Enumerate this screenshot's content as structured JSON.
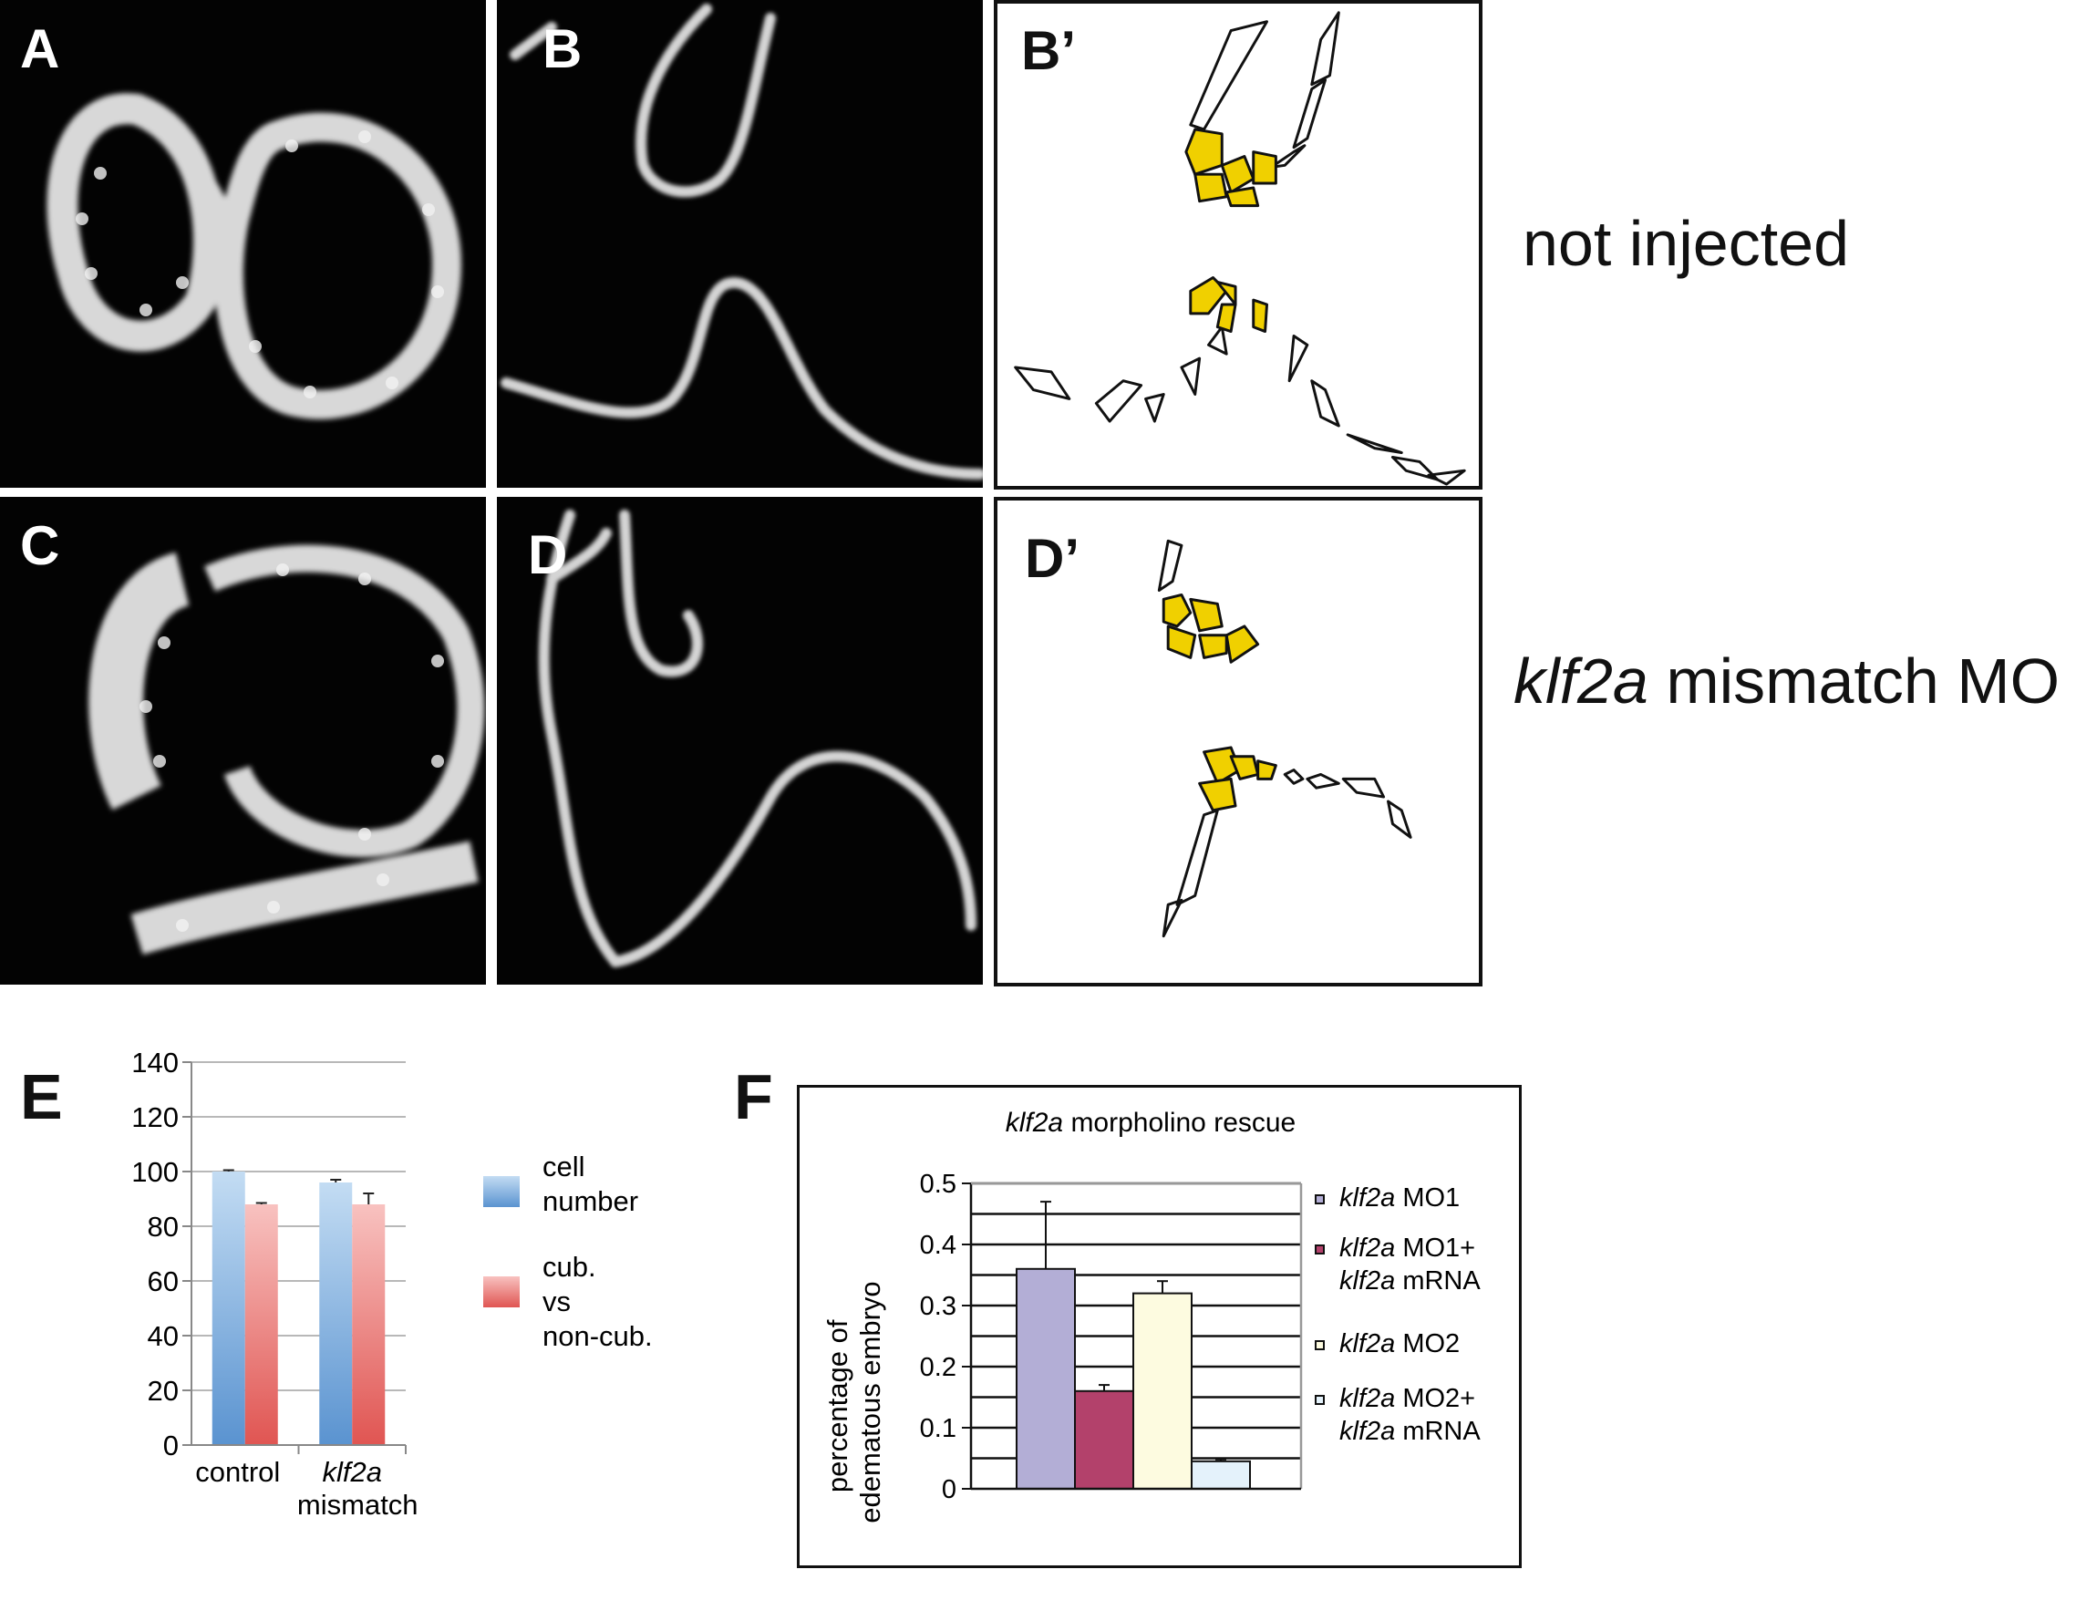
{
  "panels": {
    "A": "A",
    "B": "B",
    "B_prime": "B’",
    "C": "C",
    "D": "D",
    "D_prime": "D’",
    "E": "E",
    "F": "F"
  },
  "row_labels": {
    "row1": "not injected",
    "row2_italic": "klf2a",
    "row2_rest": " mismatch MO"
  },
  "colors": {
    "cell_fill": "#f0d000",
    "blue_bar": "#7fb0e0",
    "red_bar": "#f08a88",
    "lavender": "#b3aed6",
    "crimson": "#b3416b",
    "cream": "#fdfbe0",
    "light_blue": "#e4f2fb"
  },
  "chart_data": [
    {
      "type": "bar",
      "panel": "E",
      "categories": [
        {
          "italic": "",
          "text": "control"
        },
        {
          "italic": "klf2a",
          "text": "mismatch"
        }
      ],
      "series": [
        {
          "name": "cell number",
          "values": [
            100,
            96
          ],
          "errors": [
            0.5,
            1
          ]
        },
        {
          "name": "cub. vs non-cub.",
          "values": [
            88,
            88
          ],
          "errors": [
            0.5,
            4
          ]
        }
      ],
      "ylim": [
        0,
        140
      ],
      "yticks": [
        "0",
        "20",
        "40",
        "60",
        "80",
        "100",
        "120",
        "140"
      ],
      "grid": true,
      "legend_position": "right",
      "legend": [
        {
          "lines": [
            "cell",
            "number"
          ],
          "color": "blue"
        },
        {
          "lines": [
            "cub.",
            "vs",
            "non-cub."
          ],
          "color": "red"
        }
      ]
    },
    {
      "type": "bar",
      "panel": "F",
      "title_italic": "klf2a",
      "title_rest": " morpholino rescue",
      "ylabel_line1": "percentage of",
      "ylabel_line2": "edematous embryo",
      "ylim": [
        0,
        0.5
      ],
      "yticks": [
        "0",
        "0.1",
        "0.2",
        "0.3",
        "0.4",
        "0.5"
      ],
      "grid": true,
      "legend_position": "right",
      "bars": [
        {
          "value": 0.36,
          "error": 0.11,
          "color": "lavender"
        },
        {
          "value": 0.16,
          "error": 0.01,
          "color": "crimson"
        },
        {
          "value": 0.32,
          "error": 0.02,
          "color": "cream"
        },
        {
          "value": 0.045,
          "error": 0.003,
          "color": "light_blue"
        }
      ],
      "legend": [
        {
          "line1_italic": "klf2a",
          "line1_rest": " MO1",
          "line2_italic": "",
          "line2_rest": ""
        },
        {
          "line1_italic": "klf2a",
          "line1_rest": " MO1+",
          "line2_italic": "klf2a",
          "line2_rest": " mRNA"
        },
        {
          "line1_italic": "klf2a",
          "line1_rest": " MO2",
          "line2_italic": "",
          "line2_rest": ""
        },
        {
          "line1_italic": "klf2a",
          "line1_rest": " MO2+",
          "line2_italic": "klf2a",
          "line2_rest": " mRNA"
        }
      ]
    }
  ]
}
